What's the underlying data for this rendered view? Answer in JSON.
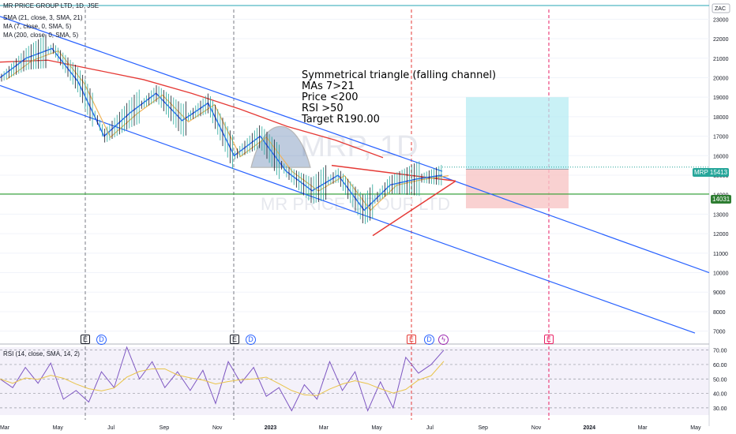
{
  "legend": {
    "title": "MR PRICE GROUP LTD, 1D, JSE",
    "sma21": "SMA (21, close, 3, SMA, 21)",
    "ma7": "MA (7, close, 0, SMA, 5)",
    "ma200": "MA (200, close, 0, SMA, 5)"
  },
  "currency": "ZAC",
  "watermark": {
    "symbol": "MRP, 1D",
    "name": "MR PRICE GROUP LTD"
  },
  "annotation": [
    "Symmetrical triangle (falling channel)",
    "MAs 7>21",
    "Price <200",
    "RSI >50",
    "Target R190.00"
  ],
  "price_tags": [
    {
      "label": "MRP",
      "value": "15413",
      "color": "#26a69a"
    },
    {
      "value": "14031",
      "color": "#2e7d32"
    }
  ],
  "rsi": {
    "label": "RSI (14, close, SMA, 14, 2)"
  },
  "events": {
    "E": "E",
    "D": "D"
  },
  "colors": {
    "up": "#26a69a",
    "down": "#131722",
    "ma7": "#2962ff",
    "sma21": "#f0b45a",
    "ma200": "#e53935",
    "channel": "#2962ff",
    "triangle": "#e53935",
    "support": "#2e9f2e",
    "top_line": "#26a6b4",
    "rsi": "#7e57c2",
    "rsi_ma": "#e9c44a",
    "target_zone": "#b2ebf2",
    "stop_zone": "#f8c6c6"
  },
  "chart_data": [
    {
      "type": "line",
      "title": "MR PRICE GROUP LTD, 1D, JSE",
      "x_tick_labels": [
        "Mar",
        "May",
        "Jul",
        "Sep",
        "Nov",
        "2023",
        "Mar",
        "May",
        "Jul",
        "Sep",
        "Nov",
        "2024",
        "Mar",
        "May"
      ],
      "y_tick_labels": [
        "7000",
        "8000",
        "9000",
        "10000",
        "11000",
        "12000",
        "13000",
        "14000",
        "15000",
        "16000",
        "17000",
        "18000",
        "19000",
        "20000",
        "21000",
        "22000",
        "23000"
      ],
      "ylim": [
        6500,
        23500
      ],
      "series": [
        {
          "name": "MA (7, close, 0, SMA, 5)",
          "x": [
            "2022-03",
            "2022-04",
            "2022-05",
            "2022-06",
            "2022-07",
            "2022-08",
            "2022-09",
            "2022-10",
            "2022-11",
            "2022-12",
            "2023-01",
            "2023-02",
            "2023-03",
            "2023-04",
            "2023-05",
            "2023-06",
            "2023-07",
            "2023-08"
          ],
          "values": [
            20000,
            21000,
            21500,
            19800,
            17000,
            18200,
            19200,
            17800,
            18700,
            16000,
            17000,
            15200,
            14200,
            15000,
            13200,
            14500,
            14800,
            15000
          ]
        },
        {
          "name": "MA (200, close, 0, SMA, 5)",
          "x": [
            "2022-03",
            "2022-05",
            "2022-07",
            "2022-09",
            "2022-11",
            "2023-01",
            "2023-03",
            "2023-05",
            "2023-07"
          ],
          "values": [
            20800,
            20900,
            20400,
            19900,
            19200,
            18400,
            17500,
            16800,
            15900
          ]
        }
      ],
      "price_tags": {
        "last": 15413,
        "support": 14031
      },
      "target_zone": [
        15300,
        19000
      ],
      "stop_zone": [
        13300,
        15300
      ]
    },
    {
      "type": "line",
      "title": "RSI (14, close, SMA, 14, 2)",
      "y_tick_labels": [
        "30.00",
        "40.00",
        "50.00",
        "60.00",
        "70.00"
      ],
      "ylim": [
        25,
        72
      ],
      "series": [
        {
          "name": "RSI",
          "values": [
            50,
            44,
            58,
            47,
            61,
            36,
            42,
            34,
            55,
            44,
            72,
            50,
            62,
            44,
            55,
            42,
            56,
            33,
            62,
            47,
            58,
            38,
            44,
            28,
            46,
            36,
            62,
            42,
            55,
            28,
            48,
            30,
            65,
            54,
            60,
            70
          ]
        }
      ]
    }
  ]
}
